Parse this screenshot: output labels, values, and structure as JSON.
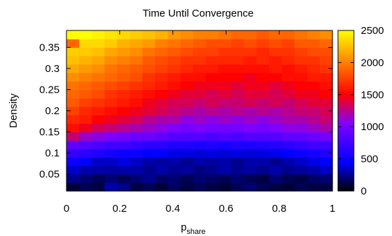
{
  "chart_data": {
    "type": "heatmap",
    "title": "Time Until Convergence",
    "xlabel": {
      "main": "p",
      "subscript": "share"
    },
    "ylabel": "Density",
    "xlim": [
      0,
      1
    ],
    "ylim": [
      0.01,
      0.39
    ],
    "x_ticks": [
      0,
      0.2,
      0.4,
      0.6,
      0.8,
      1
    ],
    "x_tick_labels": [
      "0",
      "0.2",
      "0.4",
      "0.6",
      "0.8",
      "1"
    ],
    "y_ticks": [
      0.05,
      0.1,
      0.15,
      0.2,
      0.25,
      0.3,
      0.35
    ],
    "y_tick_labels": [
      "0.05",
      "0.1",
      "0.15",
      "0.2",
      "0.25",
      "0.3",
      "0.35"
    ],
    "colorbar": {
      "range": [
        0,
        2500
      ],
      "ticks": [
        0,
        500,
        1000,
        1500,
        2000,
        2500
      ],
      "tick_labels": [
        "0",
        "500",
        "1000",
        "1500",
        "2000",
        "2500"
      ],
      "palette": "black-blue-purple-red-orange-yellow"
    },
    "x": [
      0.0,
      0.05,
      0.1,
      0.15,
      0.2,
      0.25,
      0.3,
      0.35,
      0.4,
      0.45,
      0.5,
      0.55,
      0.6,
      0.65,
      0.7,
      0.75,
      0.8,
      0.85,
      0.9,
      0.95,
      1.0
    ],
    "y": [
      0.02,
      0.04,
      0.06,
      0.08,
      0.1,
      0.12,
      0.14,
      0.16,
      0.18,
      0.2,
      0.22,
      0.24,
      0.26,
      0.28,
      0.3,
      0.32,
      0.34,
      0.36,
      0.38
    ],
    "z": [
      [
        100,
        150,
        120,
        300,
        250,
        120,
        150,
        100,
        180,
        120,
        150,
        120,
        100,
        150,
        200,
        150,
        120,
        100,
        150,
        120,
        120
      ],
      [
        250,
        200,
        150,
        200,
        150,
        200,
        250,
        180,
        200,
        150,
        200,
        180,
        150,
        200,
        150,
        120,
        200,
        150,
        120,
        180,
        200
      ],
      [
        350,
        300,
        300,
        280,
        300,
        300,
        250,
        300,
        250,
        280,
        220,
        250,
        300,
        250,
        280,
        250,
        300,
        250,
        280,
        300,
        350
      ],
      [
        500,
        450,
        350,
        350,
        400,
        350,
        300,
        280,
        300,
        250,
        300,
        280,
        300,
        250,
        300,
        300,
        250,
        300,
        350,
        400,
        450
      ],
      [
        700,
        650,
        600,
        550,
        500,
        500,
        450,
        450,
        400,
        400,
        380,
        400,
        380,
        400,
        380,
        400,
        420,
        450,
        500,
        550,
        600
      ],
      [
        900,
        850,
        800,
        750,
        750,
        700,
        650,
        650,
        600,
        600,
        580,
        600,
        560,
        600,
        580,
        600,
        620,
        650,
        700,
        750,
        750
      ],
      [
        1300,
        1150,
        1100,
        1050,
        1000,
        950,
        950,
        900,
        850,
        850,
        850,
        800,
        850,
        800,
        850,
        850,
        850,
        900,
        900,
        950,
        1000
      ],
      [
        1550,
        1450,
        1350,
        1300,
        1250,
        1200,
        1150,
        1100,
        1050,
        1000,
        1050,
        1000,
        1000,
        1000,
        1050,
        1000,
        1050,
        1100,
        1100,
        1150,
        1200
      ],
      [
        1650,
        1600,
        1500,
        1450,
        1400,
        1350,
        1250,
        1200,
        1200,
        1100,
        1150,
        1100,
        1150,
        1100,
        1150,
        1100,
        1150,
        1200,
        1200,
        1250,
        1300
      ],
      [
        1750,
        1650,
        1600,
        1550,
        1500,
        1450,
        1400,
        1350,
        1300,
        1250,
        1200,
        1250,
        1200,
        1250,
        1200,
        1250,
        1200,
        1250,
        1300,
        1300,
        1350
      ],
      [
        1850,
        1750,
        1700,
        1650,
        1600,
        1550,
        1450,
        1400,
        1350,
        1350,
        1300,
        1350,
        1300,
        1300,
        1350,
        1300,
        1350,
        1300,
        1350,
        1400,
        1400
      ],
      [
        1900,
        1850,
        1800,
        1700,
        1650,
        1600,
        1550,
        1500,
        1450,
        1400,
        1400,
        1350,
        1400,
        1350,
        1400,
        1400,
        1350,
        1400,
        1450,
        1450,
        1500
      ],
      [
        1950,
        1900,
        1850,
        1800,
        1750,
        1700,
        1650,
        1600,
        1550,
        1500,
        1450,
        1450,
        1450,
        1400,
        1450,
        1450,
        1400,
        1450,
        1500,
        1500,
        1550
      ],
      [
        2050,
        2000,
        1950,
        1900,
        1850,
        1800,
        1700,
        1650,
        1600,
        1550,
        1550,
        1500,
        1500,
        1500,
        1450,
        1500,
        1500,
        1550,
        1550,
        1600,
        1600
      ],
      [
        2150,
        2100,
        2050,
        1950,
        1900,
        1850,
        1800,
        1750,
        1700,
        1650,
        1600,
        1600,
        1550,
        1550,
        1550,
        1550,
        1600,
        1550,
        1600,
        1650,
        1700
      ],
      [
        2250,
        2200,
        2150,
        2050,
        2000,
        1950,
        1850,
        1800,
        1750,
        1700,
        1700,
        1650,
        1650,
        1650,
        1600,
        1650,
        1600,
        1650,
        1700,
        1700,
        1750
      ],
      [
        2300,
        2300,
        2250,
        2150,
        2100,
        2050,
        1950,
        1900,
        1850,
        1800,
        1750,
        1750,
        1700,
        1700,
        1700,
        1650,
        1700,
        1700,
        1750,
        1800,
        1800
      ],
      [
        1900,
        2350,
        2350,
        2300,
        2200,
        2150,
        2100,
        2000,
        1950,
        1900,
        1850,
        1800,
        1800,
        1750,
        1800,
        1750,
        1800,
        1750,
        1850,
        1850,
        1900
      ],
      [
        2500,
        2500,
        2450,
        2400,
        2350,
        2300,
        2250,
        2200,
        2100,
        2050,
        2000,
        2000,
        1950,
        1900,
        1900,
        1850,
        1900,
        1900,
        1950,
        2000,
        2050
      ]
    ]
  }
}
